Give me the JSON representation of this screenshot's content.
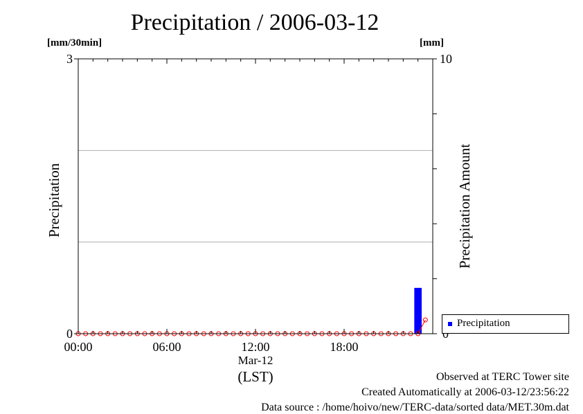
{
  "page": {
    "title": "Precipitation / 2006-03-12",
    "footer": [
      "Observed at TERC Tower site",
      "Created Automatically at 2006-03-12/23:56:22",
      "Data source : /home/hoivo/new/TERC-data/sorted  data/MET.30m.dat"
    ]
  },
  "chart_data": {
    "type": "bar",
    "title": "Precipitation / 2006-03-12",
    "xlabel": "(LST)",
    "date_label": "Mar-12",
    "x_ticks": [
      "00:00",
      "06:00",
      "12:00",
      "18:00"
    ],
    "left_axis": {
      "label": "Precipitation",
      "unit": "[mm/30min]",
      "ylim": [
        0,
        3
      ],
      "tick_labels": [
        "0",
        "3"
      ]
    },
    "right_axis": {
      "label": "Precipitation Amount",
      "unit": "[mm]",
      "ylim": [
        0,
        10
      ],
      "tick_labels": [
        "0",
        "10"
      ]
    },
    "grid": true,
    "legend": {
      "entries": [
        "Precipitation"
      ],
      "placement": "bottom-right"
    },
    "colors": {
      "bar": "#0000ff",
      "line": "#ff0000",
      "grid": "#b0b0b0"
    },
    "series": [
      {
        "name": "Precipitation",
        "kind": "bar",
        "axis": "left",
        "x": [
          "23:00"
        ],
        "values": [
          0.5
        ]
      },
      {
        "kind": "line",
        "axis": "right",
        "x": [
          "00:00",
          "00:30",
          "01:00",
          "01:30",
          "02:00",
          "02:30",
          "03:00",
          "03:30",
          "04:00",
          "04:30",
          "05:00",
          "05:30",
          "06:00",
          "06:30",
          "07:00",
          "07:30",
          "08:00",
          "08:30",
          "09:00",
          "09:30",
          "10:00",
          "10:30",
          "11:00",
          "11:30",
          "12:00",
          "12:30",
          "13:00",
          "13:30",
          "14:00",
          "14:30",
          "15:00",
          "15:30",
          "16:00",
          "16:30",
          "17:00",
          "17:30",
          "18:00",
          "18:30",
          "19:00",
          "19:30",
          "20:00",
          "20:30",
          "21:00",
          "21:30",
          "22:00",
          "22:30",
          "23:00",
          "23:30"
        ],
        "values": [
          0,
          0,
          0,
          0,
          0,
          0,
          0,
          0,
          0,
          0,
          0,
          0,
          0,
          0,
          0,
          0,
          0,
          0,
          0,
          0,
          0,
          0,
          0,
          0,
          0,
          0,
          0,
          0,
          0,
          0,
          0,
          0,
          0,
          0,
          0,
          0,
          0,
          0,
          0,
          0,
          0,
          0,
          0,
          0,
          0,
          0,
          0,
          0.5
        ]
      }
    ]
  }
}
